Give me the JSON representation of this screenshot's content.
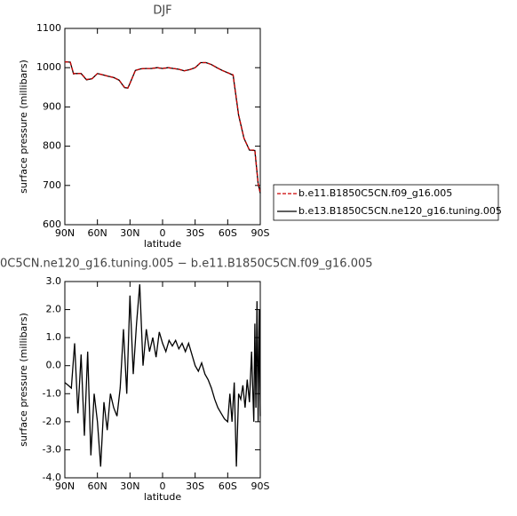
{
  "chart_data": [
    {
      "type": "line",
      "title": "DJF",
      "xlabel": "latitude",
      "ylabel": "surface pressure (millibars)",
      "x": [
        90,
        85,
        82,
        80,
        75,
        70,
        65,
        60,
        55,
        50,
        45,
        40,
        35,
        32,
        30,
        25,
        20,
        15,
        10,
        5,
        0,
        -5,
        -10,
        -15,
        -20,
        -25,
        -30,
        -35,
        -40,
        -45,
        -50,
        -55,
        -60,
        -65,
        -70,
        -75,
        -80,
        -85,
        -88,
        -90
      ],
      "series": [
        {
          "name": "b.e11.B1850C5CN.f09_g16.005",
          "color": "#cc0000",
          "dash": true,
          "values": [
            1015,
            1014,
            985,
            985,
            985,
            970,
            972,
            985,
            982,
            978,
            975,
            968,
            950,
            948,
            960,
            993,
            997,
            998,
            998,
            1000,
            998,
            1000,
            998,
            996,
            992,
            995,
            1000,
            1013,
            1013,
            1008,
            1000,
            993,
            987,
            982,
            880,
            820,
            790,
            790,
            705,
            680
          ]
        },
        {
          "name": "b.e13.B1850C5CN.ne120_g16.tuning.005",
          "color": "#000000",
          "dash": false,
          "values": [
            1015,
            1014,
            984,
            985,
            985,
            969,
            972,
            985,
            982,
            978,
            975,
            968,
            949,
            948,
            960,
            993,
            997,
            998,
            998,
            1000,
            998,
            1000,
            998,
            996,
            992,
            995,
            1000,
            1013,
            1013,
            1008,
            1000,
            993,
            987,
            981,
            879,
            820,
            790,
            789,
            704,
            680
          ]
        }
      ],
      "xlim": [
        90,
        -90
      ],
      "xticks": [
        {
          "value": 90,
          "label": "90N"
        },
        {
          "value": 60,
          "label": "60N"
        },
        {
          "value": 30,
          "label": "30N"
        },
        0,
        {
          "value": -30,
          "label": "30S"
        },
        {
          "value": -60,
          "label": "60S"
        },
        {
          "value": -90,
          "label": "90S"
        }
      ],
      "ylim": [
        600,
        1100
      ],
      "yticks": [
        600,
        700,
        800,
        900,
        1000,
        1100
      ]
    },
    {
      "type": "line",
      "title": "0C5CN.ne120_g16.tuning.005 − b.e11.B1850C5CN.f09_g16.005",
      "xlabel": "latitude",
      "ylabel": "surface pressure (millibars)",
      "x": [
        90,
        87,
        84,
        81,
        78,
        75,
        72,
        69,
        66,
        63,
        60,
        57,
        54,
        51,
        48,
        45,
        42,
        39,
        36,
        33,
        30,
        27,
        24,
        21,
        18,
        15,
        12,
        9,
        6,
        3,
        0,
        -3,
        -6,
        -9,
        -12,
        -15,
        -18,
        -21,
        -24,
        -27,
        -30,
        -33,
        -36,
        -39,
        -42,
        -45,
        -48,
        -51,
        -54,
        -57,
        -60,
        -62,
        -64,
        -66,
        -68,
        -70,
        -72,
        -74,
        -76,
        -78,
        -80,
        -82,
        -84,
        -85,
        -86,
        -87,
        -88,
        -89,
        -90
      ],
      "values": [
        -0.6,
        -0.7,
        -0.8,
        0.8,
        -1.7,
        0.4,
        -2.5,
        0.5,
        -3.2,
        -1.0,
        -2.0,
        -3.6,
        -1.3,
        -2.3,
        -1.0,
        -1.5,
        -1.8,
        -0.8,
        1.3,
        -1.0,
        2.5,
        -0.3,
        1.5,
        2.9,
        0.0,
        1.3,
        0.5,
        1.0,
        0.3,
        1.2,
        0.8,
        0.5,
        0.9,
        0.7,
        0.9,
        0.6,
        0.8,
        0.5,
        0.8,
        0.4,
        0.0,
        -0.2,
        0.1,
        -0.3,
        -0.5,
        -0.8,
        -1.2,
        -1.5,
        -1.7,
        -1.9,
        -2.0,
        -1.0,
        -2.0,
        -0.6,
        -3.6,
        -1.0,
        -1.2,
        -0.7,
        -1.5,
        -0.5,
        -1.3,
        0.5,
        -2.0,
        1.5,
        -1.5,
        2.3,
        -2.0,
        2.0,
        -1.8
      ],
      "color": "#000000",
      "xlim": [
        90,
        -90
      ],
      "xticks": [
        {
          "value": 90,
          "label": "90N"
        },
        {
          "value": 60,
          "label": "60N"
        },
        {
          "value": 30,
          "label": "30N"
        },
        0,
        {
          "value": -30,
          "label": "30S"
        },
        {
          "value": -60,
          "label": "60S"
        },
        {
          "value": -90,
          "label": "90S"
        }
      ],
      "ylim": [
        -4,
        3
      ],
      "yticks": [
        {
          "value": -4,
          "label": "-4.0"
        },
        {
          "value": -3,
          "label": "-3.0"
        },
        {
          "value": -2,
          "label": "-2.0"
        },
        {
          "value": -1,
          "label": "-1.0"
        },
        {
          "value": 0,
          "label": "0.0"
        },
        {
          "value": 1,
          "label": "1.0"
        },
        {
          "value": 2,
          "label": "2.0"
        },
        {
          "value": 3,
          "label": "3.0"
        }
      ]
    }
  ]
}
